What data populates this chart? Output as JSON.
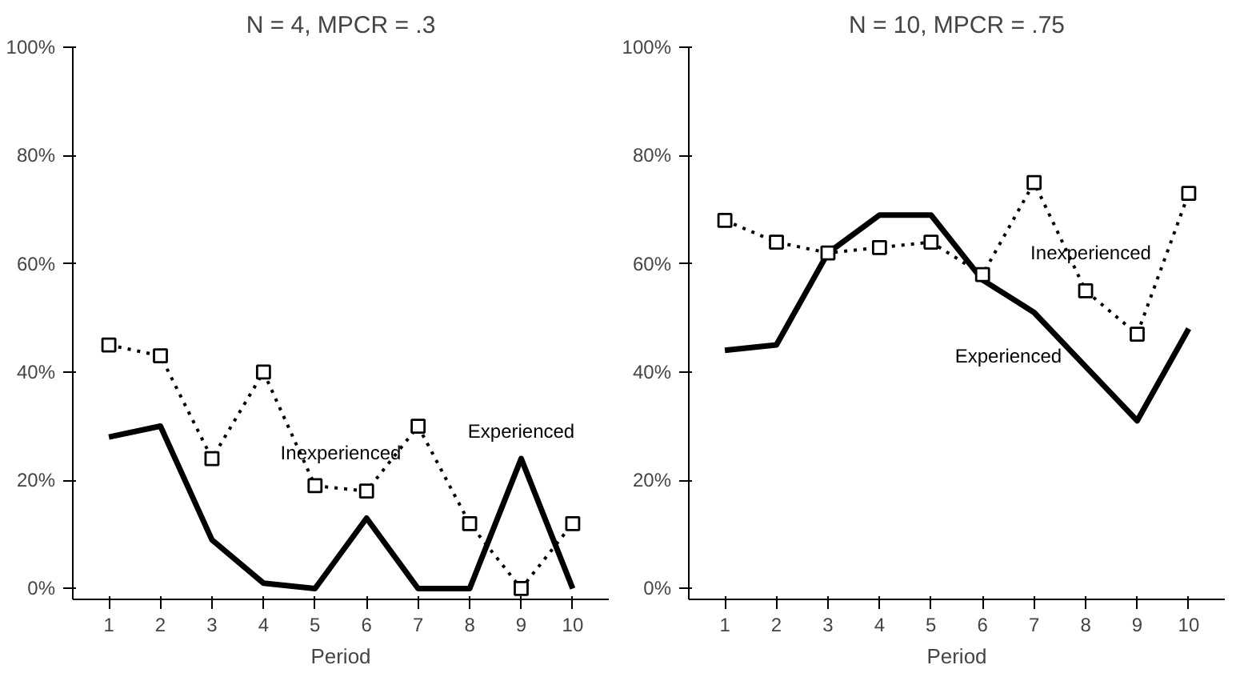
{
  "chart_data": [
    {
      "type": "line",
      "title": "N = 4, MPCR = .3",
      "xlabel": "Period",
      "categories": [
        "1",
        "2",
        "3",
        "4",
        "5",
        "6",
        "7",
        "8",
        "9",
        "10"
      ],
      "ylim": [
        -2,
        100
      ],
      "yticks": [
        {
          "value": 0,
          "label": "0%"
        },
        {
          "value": 20,
          "label": "20%"
        },
        {
          "value": 40,
          "label": "40%"
        },
        {
          "value": 60,
          "label": "60%"
        },
        {
          "value": 80,
          "label": "80%"
        },
        {
          "value": 100,
          "label": "100%"
        }
      ],
      "grid": false,
      "series": [
        {
          "name": "Inexperienced",
          "color": "#000000",
          "line_style": "dotted",
          "marker": "square",
          "values": [
            45,
            43,
            24,
            40,
            19,
            18,
            30,
            12,
            0,
            12
          ]
        },
        {
          "name": "Experienced",
          "color": "#000000",
          "line_style": "solid",
          "marker": "none",
          "values": [
            28,
            30,
            9,
            1,
            0,
            13,
            0,
            0,
            24,
            0
          ]
        }
      ]
    },
    {
      "type": "line",
      "title": "N = 10, MPCR = .75",
      "xlabel": "Period",
      "categories": [
        "1",
        "2",
        "3",
        "4",
        "5",
        "6",
        "7",
        "8",
        "9",
        "10"
      ],
      "ylim": [
        -2,
        100
      ],
      "yticks": [
        {
          "value": 0,
          "label": "0%"
        },
        {
          "value": 20,
          "label": "20%"
        },
        {
          "value": 40,
          "label": "40%"
        },
        {
          "value": 60,
          "label": "60%"
        },
        {
          "value": 80,
          "label": "80%"
        },
        {
          "value": 100,
          "label": "100%"
        }
      ],
      "grid": false,
      "series": [
        {
          "name": "Inexperienced",
          "color": "#000000",
          "line_style": "dotted",
          "marker": "square",
          "values": [
            68,
            64,
            62,
            63,
            64,
            58,
            75,
            55,
            47,
            73
          ]
        },
        {
          "name": "Experienced",
          "color": "#000000",
          "line_style": "solid",
          "marker": "none",
          "values": [
            44,
            45,
            62,
            69,
            69,
            57,
            51,
            41,
            31,
            48
          ]
        }
      ]
    }
  ]
}
